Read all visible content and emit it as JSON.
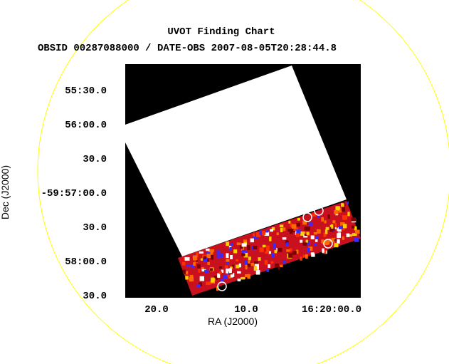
{
  "header": {
    "title": "UVOT Finding Chart",
    "subtitle": "OBSID 00287088000 / DATE-OBS 2007-08-05T20:28:44.8"
  },
  "x_axis": {
    "label": "RA (J2000)",
    "ticks": [
      "20.0",
      "10.0",
      "16:20:00.0"
    ]
  },
  "y_axis": {
    "label": "Dec (J2000)",
    "ticks": [
      "55:30.0",
      "56:00.0",
      "30.0",
      "-59:57:00.0",
      "30.0",
      "58:00.0",
      "30.0"
    ]
  }
}
